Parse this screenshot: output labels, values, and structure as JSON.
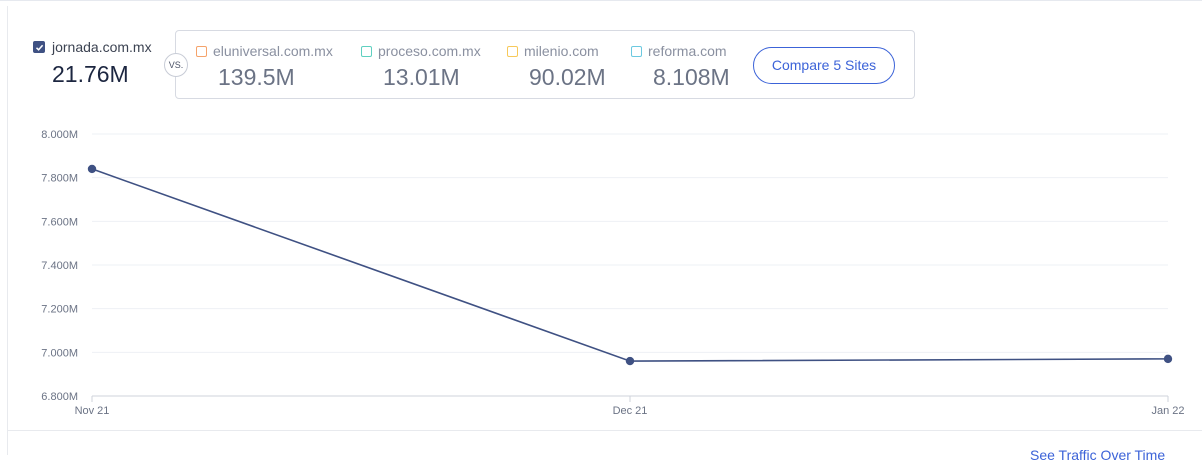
{
  "main_site": {
    "name": "jornada.com.mx",
    "value": "21.76M",
    "checked": true,
    "color": "#3f5183"
  },
  "vs_label": "VS.",
  "competitors": [
    {
      "name": "eluniversal.com.mx",
      "value": "139.5M",
      "color": "#f5a36b"
    },
    {
      "name": "proceso.com.mx",
      "value": "13.01M",
      "color": "#5fd0c0"
    },
    {
      "name": "milenio.com",
      "value": "90.02M",
      "color": "#f7c95a"
    },
    {
      "name": "reforma.com",
      "value": "8.108M",
      "color": "#6cc9e0"
    }
  ],
  "compare_button": "Compare 5 Sites",
  "footer_link": "See Traffic Over Time",
  "chart_data": {
    "type": "line",
    "categories": [
      "Nov 21",
      "Dec 21",
      "Jan 22"
    ],
    "series": [
      {
        "values": [
          7840000,
          6960000,
          6970000
        ],
        "color": "#3f5183"
      }
    ],
    "y_ticks": [
      "6.800M",
      "7.000M",
      "7.200M",
      "7.400M",
      "7.600M",
      "7.800M",
      "8.000M"
    ],
    "y_tick_values": [
      6800000,
      7000000,
      7200000,
      7400000,
      7600000,
      7800000,
      8000000
    ],
    "ylim": [
      6800000,
      8000000
    ],
    "grid": true
  }
}
